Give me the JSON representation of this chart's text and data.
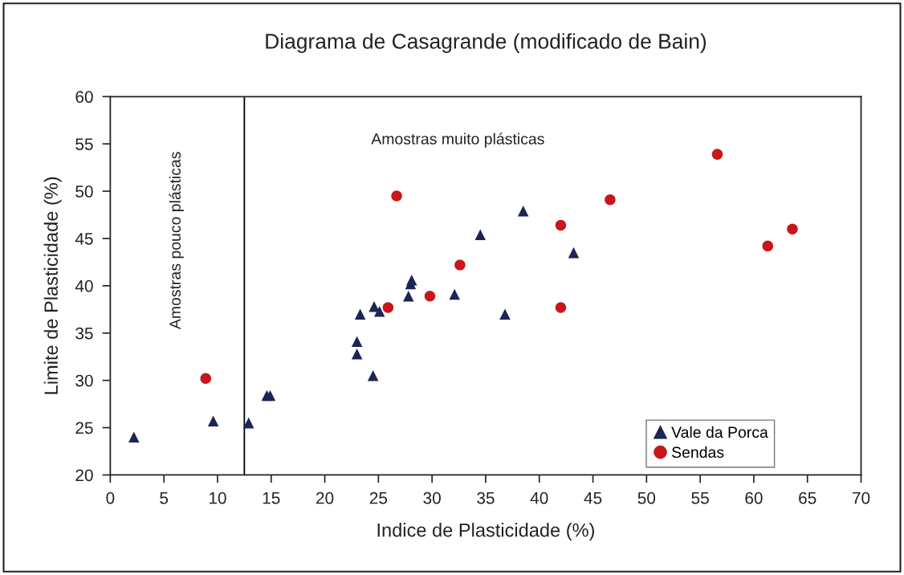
{
  "chart_data": {
    "type": "scatter",
    "title": "Diagrama de Casagrande (modificado de Bain)",
    "xlabel": "Indice de Plasticidade (%)",
    "ylabel": "Limite de Plasticidade (%)",
    "series": [
      {
        "name": "Vale da Porca",
        "color": "#1c2553",
        "marker": "triangle",
        "x": [
          2.2,
          9.6,
          12.9,
          14.6,
          14.9,
          23.3,
          23.0,
          23.0,
          24.5,
          24.6,
          25.1,
          28.1,
          28.0,
          27.8,
          32.1,
          34.5,
          36.8,
          38.5,
          43.2
        ],
        "values": [
          24.0,
          25.7,
          25.5,
          28.4,
          28.4,
          37.0,
          34.1,
          32.8,
          30.5,
          37.8,
          37.3,
          40.6,
          40.2,
          38.9,
          39.1,
          45.4,
          37.0,
          47.9,
          43.5
        ]
      },
      {
        "name": "Sendas",
        "color": "#c8161a",
        "marker": "circle",
        "x": [
          8.9,
          25.9,
          26.7,
          29.8,
          32.6,
          42.0,
          42.0,
          46.6,
          56.6,
          61.3,
          63.6
        ],
        "values": [
          30.2,
          37.7,
          49.5,
          38.9,
          42.2,
          46.4,
          37.7,
          49.1,
          53.9,
          44.2,
          46.0
        ]
      }
    ],
    "xlim": [
      0,
      70
    ],
    "xticks": [
      0,
      5,
      10,
      15,
      20,
      25,
      30,
      35,
      40,
      45,
      50,
      55,
      60,
      65,
      70
    ],
    "ylim": [
      20,
      60
    ],
    "yticks": [
      20,
      25,
      30,
      35,
      40,
      45,
      50,
      55,
      60
    ],
    "ref_lines": [
      {
        "axis": "x",
        "value": 12.5,
        "color": "#000000",
        "line_style": "solid"
      }
    ],
    "annotations": [
      "Amostras pouco plásticas",
      "Amostras muito plásticas"
    ],
    "grid": false,
    "legend": "bottom right"
  }
}
